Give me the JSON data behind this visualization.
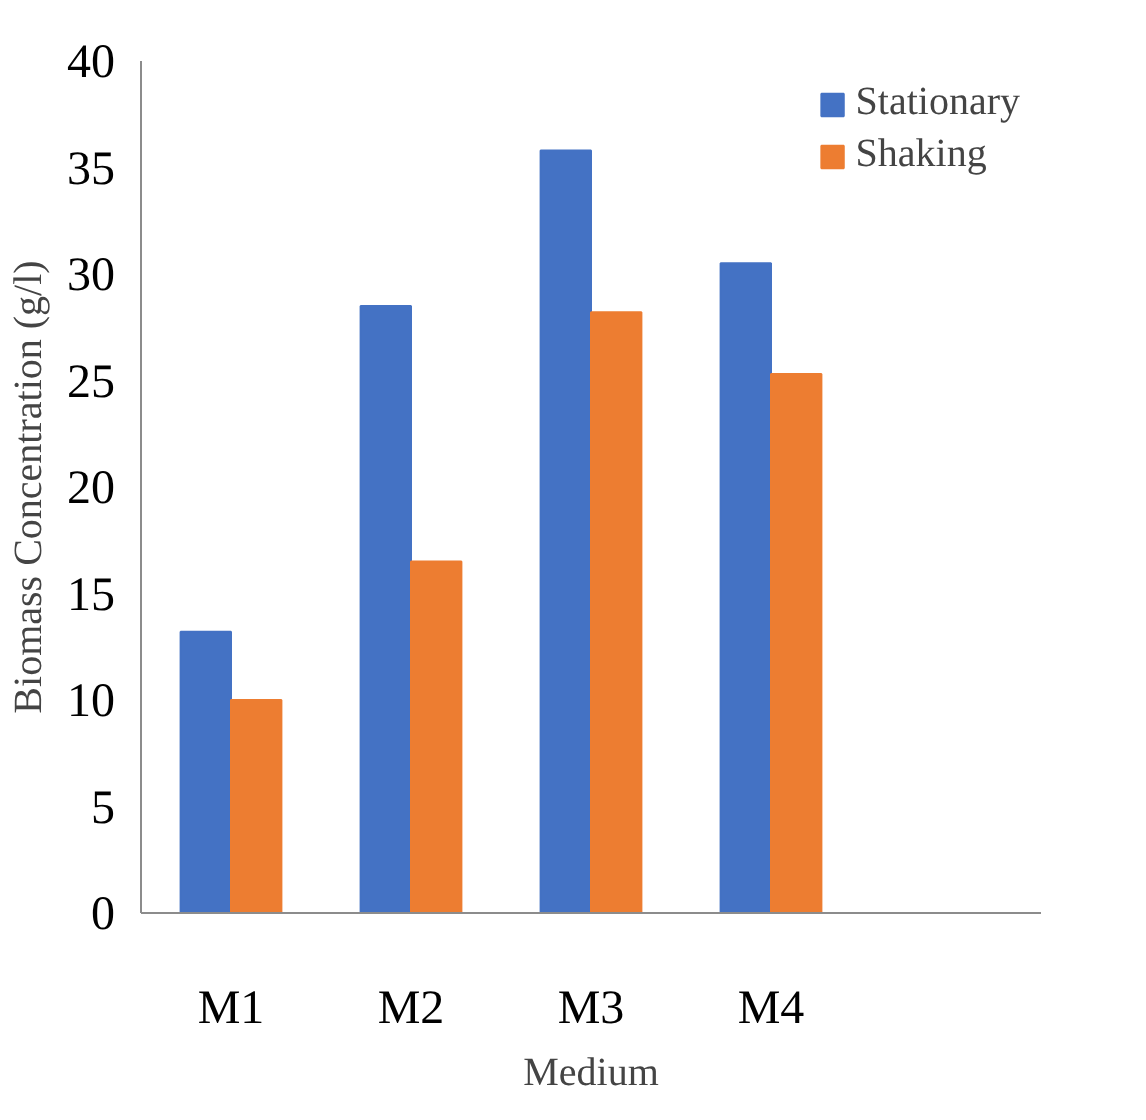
{
  "chart_data": {
    "type": "bar",
    "xlabel": "Medium",
    "ylabel": "Biomass Concentration (g/l)",
    "categories": [
      "M1",
      "M2",
      "M3",
      "M4",
      null
    ],
    "series": [
      {
        "name": "Stationary",
        "color": "#4472c4",
        "values": [
          13.2,
          28.5,
          35.8,
          30.5,
          null
        ]
      },
      {
        "name": "Shaking",
        "color": "#ed7d31",
        "values": [
          10,
          16.5,
          28.2,
          25.3,
          null
        ]
      }
    ],
    "ylim": [
      0,
      40
    ],
    "yticks": [
      0,
      5,
      10,
      15,
      20,
      25,
      30,
      35,
      40
    ],
    "grid": false,
    "legend": "top right"
  }
}
